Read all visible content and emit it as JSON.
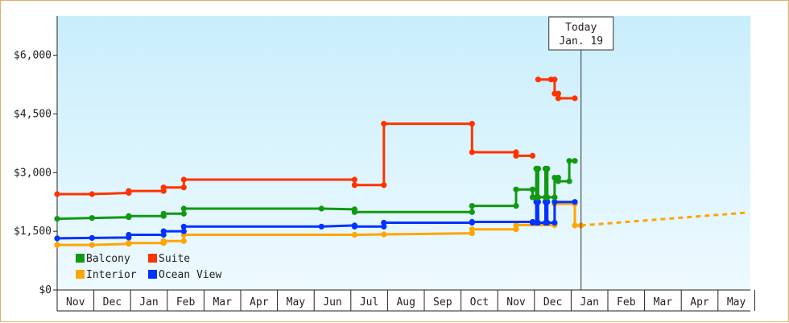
{
  "chart_data": {
    "type": "line",
    "title": "",
    "xlabel": "",
    "ylabel": "",
    "ylim": [
      0,
      7000
    ],
    "y_ticks": [
      "$0",
      "$1,500",
      "$3,000",
      "$4,500",
      "$6,000"
    ],
    "y_tick_values": [
      0,
      1500,
      3000,
      4500,
      6000
    ],
    "x_ticks": [
      "Nov",
      "Dec",
      "Jan",
      "Feb",
      "Mar",
      "Apr",
      "May",
      "Jun",
      "Jul",
      "Aug",
      "Sep",
      "Oct",
      "Nov",
      "Dec",
      "Jan",
      "Feb",
      "Mar",
      "Apr",
      "May"
    ],
    "x_unit": "months from start of first Nov",
    "legend_position": "bottom-left",
    "grid": false,
    "today_marker": {
      "line1": "Today",
      "line2": "Jan. 19",
      "x": 14.27
    },
    "series": [
      {
        "name": "Suite",
        "color": "#ff3300",
        "points": [
          [
            0.0,
            2450
          ],
          [
            0.95,
            2450
          ],
          [
            1.95,
            2480
          ],
          [
            1.95,
            2530
          ],
          [
            2.9,
            2530
          ],
          [
            2.9,
            2620
          ],
          [
            3.45,
            2620
          ],
          [
            3.45,
            2820
          ],
          [
            7.2,
            2820
          ],
          [
            8.1,
            2820
          ],
          [
            8.1,
            2680
          ],
          [
            8.9,
            2680
          ],
          [
            8.9,
            4250
          ],
          [
            11.3,
            4250
          ],
          [
            11.3,
            3520
          ],
          [
            12.5,
            3520
          ],
          [
            12.5,
            3430
          ],
          [
            12.65,
            3430
          ],
          [
            12.65,
            3430
          ],
          [
            12.95,
            3430
          ]
        ],
        "segment2": [
          [
            13.1,
            5380
          ],
          [
            13.45,
            5380
          ],
          [
            13.45,
            5380
          ],
          [
            13.55,
            5380
          ],
          [
            13.55,
            5020
          ],
          [
            13.65,
            5020
          ],
          [
            13.65,
            4900
          ],
          [
            14.1,
            4900
          ]
        ]
      },
      {
        "name": "Balcony",
        "color": "#119911",
        "points": [
          [
            0.0,
            1820
          ],
          [
            0.95,
            1840
          ],
          [
            1.95,
            1860
          ],
          [
            1.95,
            1890
          ],
          [
            2.9,
            1890
          ],
          [
            2.9,
            1950
          ],
          [
            3.45,
            1950
          ],
          [
            3.45,
            2080
          ],
          [
            7.2,
            2080
          ],
          [
            8.1,
            2060
          ],
          [
            8.1,
            1990
          ],
          [
            8.9,
            1990
          ],
          [
            11.3,
            1990
          ],
          [
            11.3,
            2150
          ],
          [
            12.5,
            2150
          ],
          [
            12.5,
            2570
          ],
          [
            12.95,
            2570
          ],
          [
            12.95,
            2370
          ],
          [
            13.05,
            2370
          ],
          [
            13.05,
            3100
          ],
          [
            13.1,
            3100
          ],
          [
            13.1,
            2370
          ],
          [
            13.3,
            2370
          ],
          [
            13.3,
            3100
          ],
          [
            13.35,
            3100
          ],
          [
            13.35,
            2370
          ],
          [
            13.55,
            2370
          ],
          [
            13.55,
            2870
          ],
          [
            13.65,
            2870
          ],
          [
            13.65,
            2780
          ],
          [
            13.95,
            2780
          ],
          [
            13.95,
            3300
          ],
          [
            14.1,
            3300
          ]
        ]
      },
      {
        "name": "Ocean View",
        "color": "#0033ff",
        "points": [
          [
            0.0,
            1320
          ],
          [
            0.95,
            1330
          ],
          [
            1.95,
            1340
          ],
          [
            1.95,
            1410
          ],
          [
            2.9,
            1410
          ],
          [
            2.9,
            1500
          ],
          [
            3.45,
            1500
          ],
          [
            3.45,
            1620
          ],
          [
            7.2,
            1620
          ],
          [
            8.1,
            1650
          ],
          [
            8.1,
            1620
          ],
          [
            8.9,
            1620
          ],
          [
            8.9,
            1720
          ],
          [
            11.3,
            1720
          ],
          [
            11.3,
            1740
          ],
          [
            12.5,
            1740
          ],
          [
            12.95,
            1740
          ],
          [
            12.95,
            1720
          ],
          [
            13.05,
            1720
          ],
          [
            13.05,
            2250
          ],
          [
            13.1,
            2250
          ],
          [
            13.1,
            1720
          ],
          [
            13.3,
            1720
          ],
          [
            13.3,
            2250
          ],
          [
            13.35,
            2250
          ],
          [
            13.35,
            1720
          ],
          [
            13.55,
            1720
          ],
          [
            13.55,
            2250
          ],
          [
            14.1,
            2250
          ]
        ]
      },
      {
        "name": "Interior",
        "color": "#ffa500",
        "points": [
          [
            0.0,
            1150
          ],
          [
            0.95,
            1150
          ],
          [
            1.95,
            1180
          ],
          [
            1.95,
            1200
          ],
          [
            2.9,
            1200
          ],
          [
            2.9,
            1250
          ],
          [
            3.45,
            1250
          ],
          [
            3.45,
            1410
          ],
          [
            7.2,
            1410
          ],
          [
            8.1,
            1410
          ],
          [
            8.9,
            1420
          ],
          [
            11.3,
            1450
          ],
          [
            11.3,
            1550
          ],
          [
            12.5,
            1550
          ],
          [
            12.5,
            1660
          ],
          [
            12.95,
            1660
          ],
          [
            13.3,
            1660
          ],
          [
            13.55,
            1660
          ],
          [
            13.55,
            2200
          ],
          [
            14.1,
            2200
          ],
          [
            14.1,
            1650
          ],
          [
            14.27,
            1650
          ]
        ],
        "projection": [
          [
            14.27,
            1650
          ],
          [
            18.83,
            1980
          ]
        ]
      }
    ]
  }
}
